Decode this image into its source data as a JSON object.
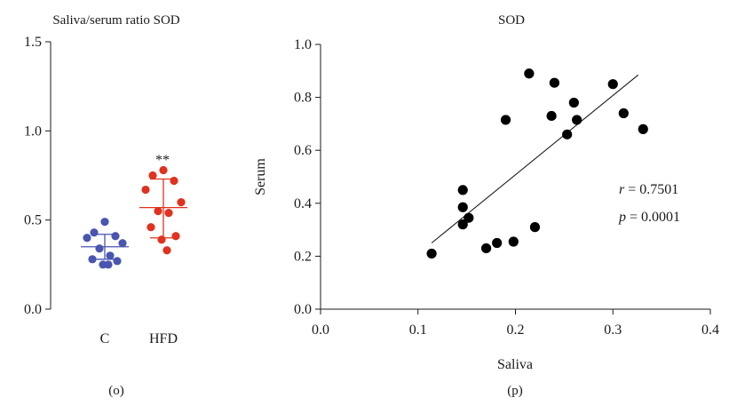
{
  "chart_data": [
    {
      "type": "scatter",
      "title": "Saliva/serum ratio SOD",
      "panel_label": "(o)",
      "ylim": [
        0,
        1.5
      ],
      "yticks": [
        "0.0",
        "0.5",
        "1.0",
        "1.5"
      ],
      "categories": [
        "C",
        "HFD"
      ],
      "annotation": "**",
      "series": [
        {
          "category": "C",
          "color": "#4a55b0",
          "values": [
            0.49,
            0.43,
            0.41,
            0.4,
            0.37,
            0.34,
            0.3,
            0.28,
            0.27,
            0.25,
            0.25
          ],
          "mean": 0.35,
          "sd_upper": 0.42,
          "sd_lower": 0.28
        },
        {
          "category": "HFD",
          "color": "#e0321f",
          "values": [
            0.78,
            0.75,
            0.72,
            0.67,
            0.6,
            0.55,
            0.54,
            0.46,
            0.41,
            0.39,
            0.33
          ],
          "mean": 0.57,
          "sd_upper": 0.73,
          "sd_lower": 0.4
        }
      ]
    },
    {
      "type": "scatter",
      "title": "SOD",
      "panel_label": "(p)",
      "xlabel": "Saliva",
      "ylabel": "Serum",
      "xlim": [
        0,
        0.4
      ],
      "ylim": [
        0,
        1.0
      ],
      "xticks": [
        "0.0",
        "0.1",
        "0.2",
        "0.3",
        "0.4"
      ],
      "yticks": [
        "0.0",
        "0.2",
        "0.4",
        "0.6",
        "0.8",
        "1.0"
      ],
      "points": [
        [
          0.114,
          0.21
        ],
        [
          0.146,
          0.45
        ],
        [
          0.146,
          0.385
        ],
        [
          0.146,
          0.32
        ],
        [
          0.152,
          0.345
        ],
        [
          0.17,
          0.23
        ],
        [
          0.181,
          0.25
        ],
        [
          0.19,
          0.715
        ],
        [
          0.198,
          0.255
        ],
        [
          0.214,
          0.89
        ],
        [
          0.22,
          0.31
        ],
        [
          0.237,
          0.73
        ],
        [
          0.24,
          0.855
        ],
        [
          0.253,
          0.66
        ],
        [
          0.26,
          0.78
        ],
        [
          0.263,
          0.715
        ],
        [
          0.3,
          0.85
        ],
        [
          0.311,
          0.74
        ],
        [
          0.331,
          0.68
        ]
      ],
      "trendline": [
        [
          0.114,
          0.25
        ],
        [
          0.326,
          0.885
        ]
      ],
      "stats": {
        "r_symbol": "r",
        "r_value": " = 0.7501",
        "p_symbol": "p",
        "p_value": " = 0.0001"
      }
    }
  ]
}
